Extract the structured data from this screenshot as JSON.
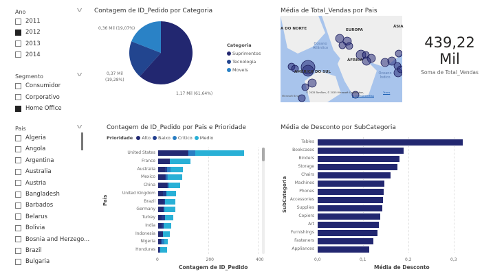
{
  "slicers": {
    "ano": {
      "label": "Ano",
      "items": [
        {
          "label": "2011",
          "checked": false
        },
        {
          "label": "2012",
          "checked": true
        },
        {
          "label": "2013",
          "checked": false
        },
        {
          "label": "2014",
          "checked": false
        }
      ]
    },
    "segmento": {
      "label": "Segmento",
      "items": [
        {
          "label": "Consumidor",
          "checked": false
        },
        {
          "label": "Corporativo",
          "checked": false
        },
        {
          "label": "Home Office",
          "checked": true
        }
      ]
    },
    "pais": {
      "label": "Pais",
      "items": [
        {
          "label": "Algeria"
        },
        {
          "label": "Angola"
        },
        {
          "label": "Argentina"
        },
        {
          "label": "Australia"
        },
        {
          "label": "Austria"
        },
        {
          "label": "Bangladesh"
        },
        {
          "label": "Barbados"
        },
        {
          "label": "Belarus"
        },
        {
          "label": "Bolivia"
        },
        {
          "label": "Bosnia and Herzego..."
        },
        {
          "label": "Brazil"
        },
        {
          "label": "Bulgaria"
        }
      ]
    }
  },
  "colors": {
    "alto": "#232a73",
    "baixo": "#223f8f",
    "critico": "#2a7ec3",
    "medio": "#29b0d6",
    "suprimentos": "#222770",
    "tecnologia": "#22458f",
    "moveis": "#2a82c6",
    "desconto": "#222770"
  },
  "map": {
    "title": "Média de Total_Vendas por Pais",
    "labels": [
      "A DO NORTE",
      "EUROPA",
      "ÁSIA",
      "Oceano Atlântico",
      "ÁFRICA",
      "AMÉRICA DO SUL",
      "Oceano Índico"
    ],
    "attribution": "© 2025 TomTom, © 2025 Microsoft Corporation,",
    "terms": "Terms",
    "osm": "© OpenStreetMap",
    "bing": "Microsoft Bing"
  },
  "card": {
    "value": "439,22",
    "unit": "Mil",
    "caption": "Soma de Total_Vendas"
  },
  "chart_data": [
    {
      "type": "pie",
      "title": "Contagem de ID_Pedido por Categoria",
      "legend_title": "Categoria",
      "slices": [
        {
          "name": "Suprimentos",
          "value": 1170,
          "label": "1,17 Mil (61,64%)",
          "pct": 61.64
        },
        {
          "name": "Tecnologia",
          "value": 370,
          "label": "0,37 Mil (19,28%)",
          "pct": 19.28
        },
        {
          "name": "Moveis",
          "value": 360,
          "label": "0,36 Mil (19,07%)",
          "pct": 19.07
        }
      ]
    },
    {
      "type": "bar",
      "stacked": true,
      "title": "Contagem de ID_Pedido por Pais e Prioridade",
      "legend_title": "Prioridade",
      "xlabel": "Contagem de ID_Pedido",
      "ylabel": "Pais",
      "xlim": [
        0,
        400
      ],
      "xticks": [
        "0",
        "200",
        "400"
      ],
      "categories": [
        "United States",
        "France",
        "Australia",
        "Mexico",
        "China",
        "United Kingdom",
        "Brazil",
        "Germany",
        "Turkey",
        "India",
        "Indonesia",
        "Nigeria",
        "Honduras"
      ],
      "series": [
        {
          "name": "Alto",
          "values": [
            118,
            46,
            28,
            28,
            37,
            20,
            23,
            20,
            14,
            15,
            19,
            12,
            4
          ]
        },
        {
          "name": "Baixo",
          "values": [
            4,
            2,
            7,
            5,
            5,
            13,
            4,
            6,
            14,
            7,
            0,
            3,
            5
          ]
        },
        {
          "name": "Critico",
          "values": [
            26,
            0,
            16,
            6,
            0,
            0,
            0,
            0,
            0,
            0,
            0,
            9,
            0
          ]
        },
        {
          "name": "Medio",
          "values": [
            196,
            82,
            47,
            58,
            47,
            38,
            42,
            42,
            32,
            31,
            27,
            16,
            28
          ]
        }
      ]
    },
    {
      "type": "bar",
      "title": "Média de Desconto por SubCategoria",
      "xlabel": "Média de Desconto",
      "ylabel": "SubCategoria",
      "xlim": [
        0,
        0.35
      ],
      "xticks": [
        "0,0",
        "0,1",
        "0,2",
        "0,3"
      ],
      "categories": [
        "Tables",
        "Bookcases",
        "Binders",
        "Storage",
        "Chairs",
        "Machines",
        "Phones",
        "Accessories",
        "Supplies",
        "Copiers",
        "Art",
        "Furnishings",
        "Fasteners",
        "Appliances"
      ],
      "values": [
        0.32,
        0.19,
        0.18,
        0.175,
        0.16,
        0.147,
        0.146,
        0.144,
        0.143,
        0.138,
        0.135,
        0.132,
        0.122,
        0.114
      ]
    }
  ]
}
